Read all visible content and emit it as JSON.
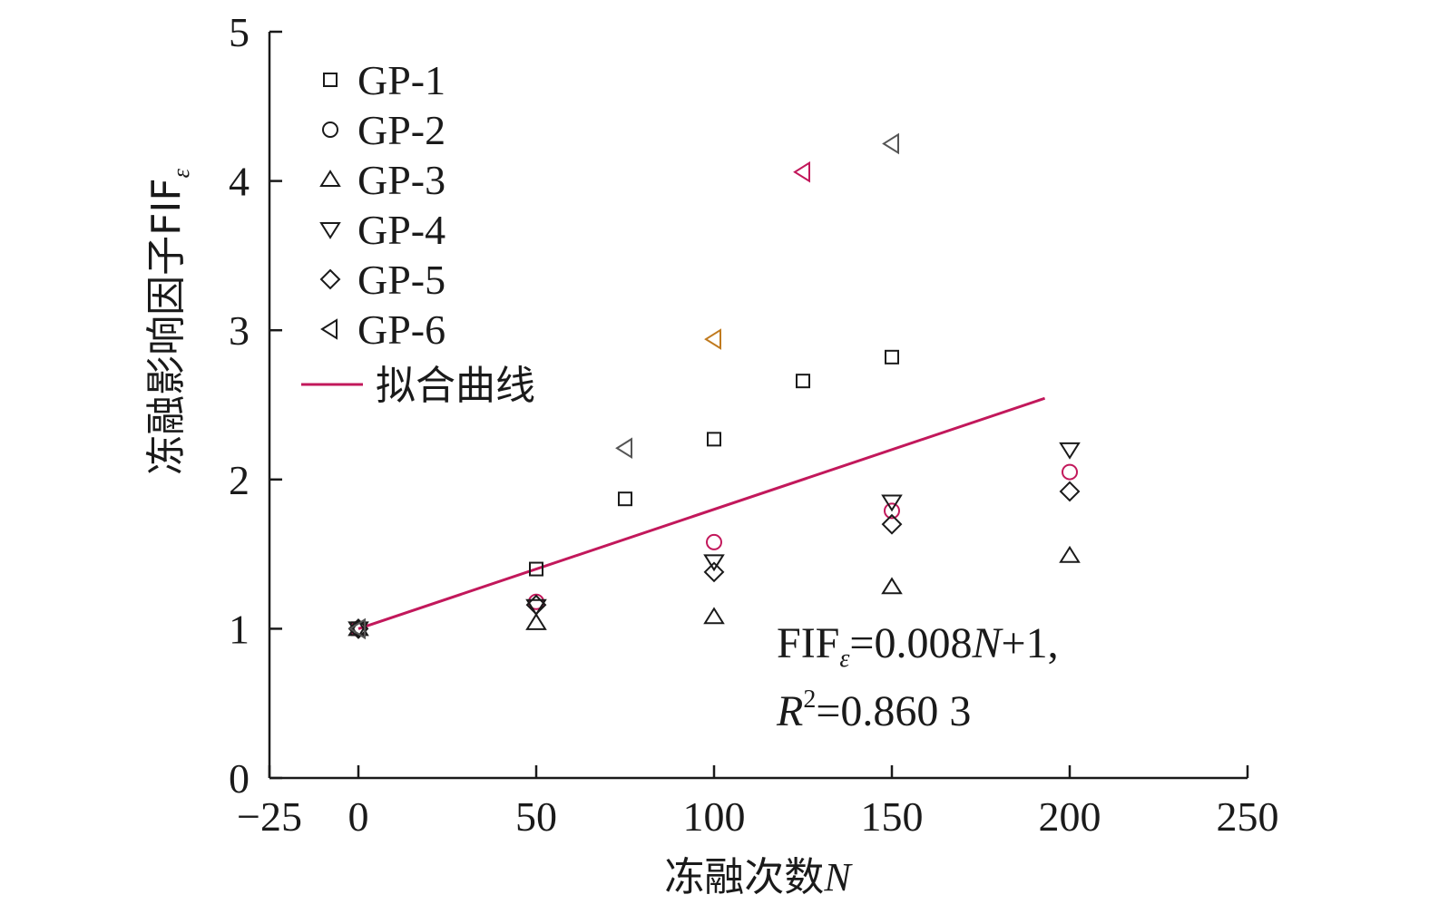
{
  "chart_data": {
    "type": "scatter",
    "xlabel": "冻融次数",
    "xlabel_var": "N",
    "ylabel": "冻融影响因子FIF",
    "ylabel_sub": "ε",
    "xlim": [
      -25,
      250
    ],
    "ylim": [
      0,
      5
    ],
    "xticks": [
      -25,
      0,
      50,
      100,
      150,
      200,
      250
    ],
    "xtick_labels": [
      "−25",
      "0",
      "50",
      "100",
      "150",
      "200",
      "250"
    ],
    "yticks": [
      0,
      1,
      2,
      3,
      4,
      5
    ],
    "ytick_labels": [
      "0",
      "1",
      "2",
      "3",
      "4",
      "5"
    ],
    "legend_position": "top-left",
    "grid": false,
    "series": [
      {
        "name": "GP-1",
        "marker": "square",
        "color": "#1a1a1a",
        "points": [
          {
            "x": 0,
            "y": 1.0
          },
          {
            "x": 50,
            "y": 1.4
          },
          {
            "x": 75,
            "y": 1.87
          },
          {
            "x": 100,
            "y": 2.27
          },
          {
            "x": 125,
            "y": 2.66
          },
          {
            "x": 150,
            "y": 2.82
          }
        ]
      },
      {
        "name": "GP-2",
        "marker": "circle",
        "color": "#c2185b",
        "points": [
          {
            "x": 0,
            "y": 1.0
          },
          {
            "x": 50,
            "y": 1.18
          },
          {
            "x": 100,
            "y": 1.58
          },
          {
            "x": 150,
            "y": 1.79
          },
          {
            "x": 200,
            "y": 2.05
          }
        ]
      },
      {
        "name": "GP-3",
        "marker": "triangle-up",
        "color": "#1a1a1a",
        "points": [
          {
            "x": 0,
            "y": 1.0
          },
          {
            "x": 50,
            "y": 1.04
          },
          {
            "x": 100,
            "y": 1.08
          },
          {
            "x": 150,
            "y": 1.28
          },
          {
            "x": 200,
            "y": 1.49
          }
        ]
      },
      {
        "name": "GP-4",
        "marker": "triangle-down",
        "color": "#1a1a1a",
        "points": [
          {
            "x": 0,
            "y": 1.0
          },
          {
            "x": 50,
            "y": 1.15
          },
          {
            "x": 100,
            "y": 1.45
          },
          {
            "x": 150,
            "y": 1.85
          },
          {
            "x": 200,
            "y": 2.2
          }
        ]
      },
      {
        "name": "GP-5",
        "marker": "diamond",
        "color": "#1a1a1a",
        "points": [
          {
            "x": 0,
            "y": 1.0
          },
          {
            "x": 50,
            "y": 1.16
          },
          {
            "x": 100,
            "y": 1.38
          },
          {
            "x": 150,
            "y": 1.7
          },
          {
            "x": 200,
            "y": 1.92
          }
        ]
      },
      {
        "name": "GP-6",
        "marker": "triangle-left",
        "color": "#333333",
        "points": [
          {
            "x": 0,
            "y": 1.0,
            "color": "#555555"
          },
          {
            "x": 75,
            "y": 2.21,
            "color": "#555555"
          },
          {
            "x": 100,
            "y": 2.94,
            "color": "#c07a1e"
          },
          {
            "x": 125,
            "y": 4.06,
            "color": "#c2185b"
          },
          {
            "x": 150,
            "y": 4.25,
            "color": "#555555"
          }
        ]
      }
    ],
    "fit": {
      "name": "拟合曲线",
      "color": "#c2185b",
      "x_start": 0,
      "x_end": 193,
      "slope": 0.008,
      "intercept": 1
    },
    "annotation": {
      "eq_prefix": "FIF",
      "eq_sub": "ε",
      "eq_mid": "=0.008",
      "eq_var": "N",
      "eq_suffix": "+1,",
      "r2_var": "R",
      "r2_sup": "2",
      "r2_value": "=0.860 3"
    }
  }
}
